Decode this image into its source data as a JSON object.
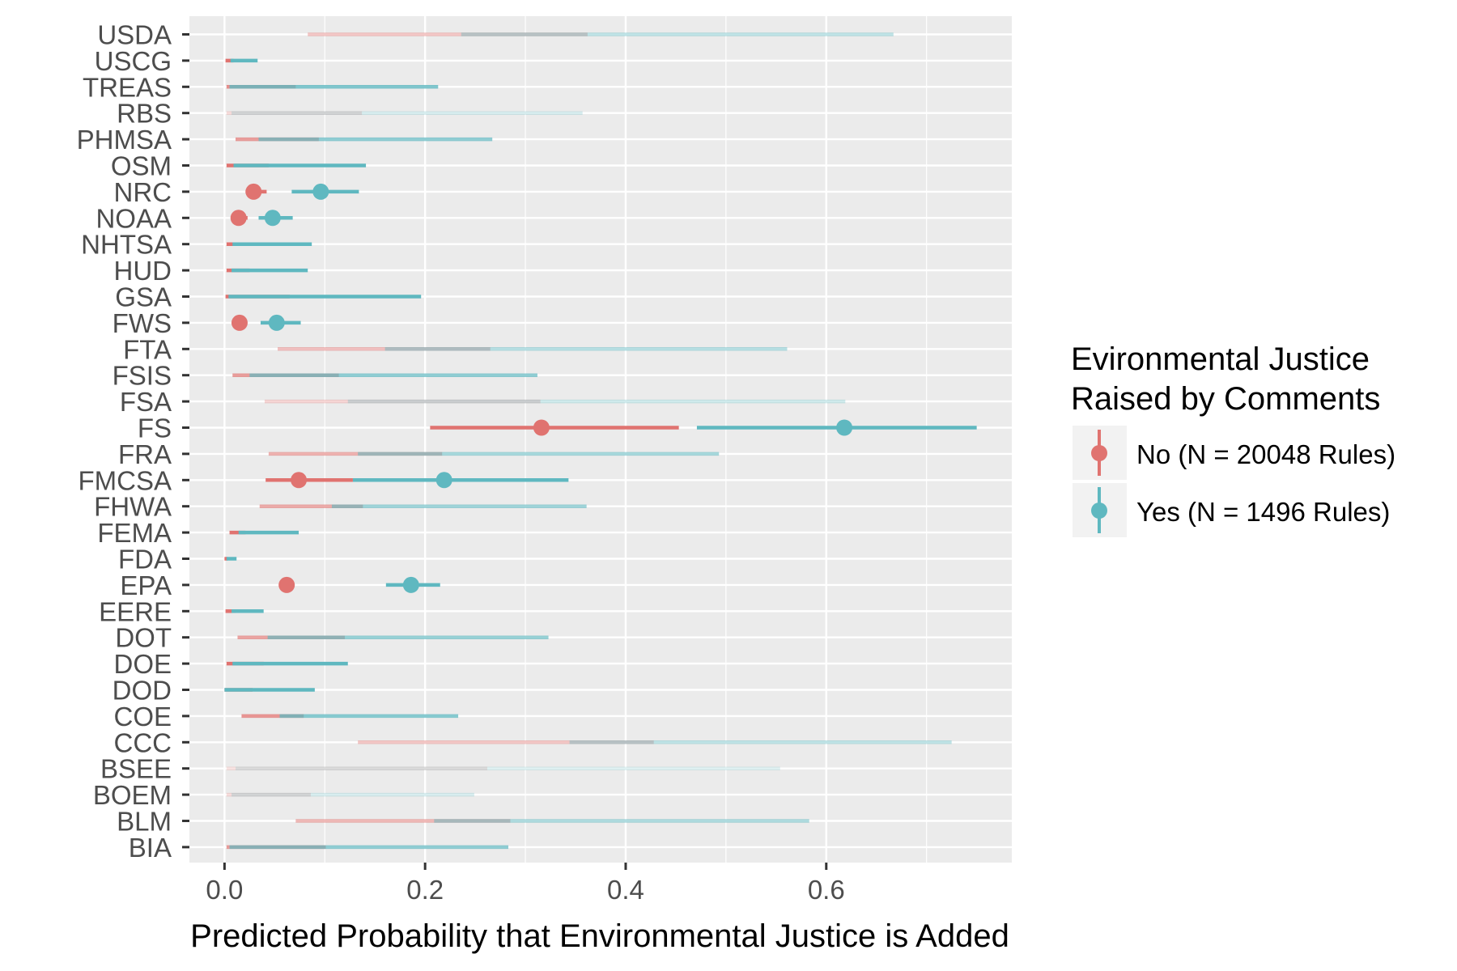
{
  "chart_data": {
    "type": "scatter",
    "subtype": "point-range",
    "title": "",
    "xlabel": "Predicted Probability that Environmental Justice is Added",
    "ylabel": "",
    "xlim": [
      -0.035,
      0.785
    ],
    "x_ticks": [
      0.0,
      0.2,
      0.4,
      0.6
    ],
    "x_tick_labels": [
      "0.0",
      "0.2",
      "0.4",
      "0.6"
    ],
    "grid": true,
    "categories": [
      "USDA",
      "USCG",
      "TREAS",
      "RBS",
      "PHMSA",
      "OSM",
      "NRC",
      "NOAA",
      "NHTSA",
      "HUD",
      "GSA",
      "FWS",
      "FTA",
      "FSIS",
      "FSA",
      "FS",
      "FRA",
      "FMCSA",
      "FHWA",
      "FEMA",
      "FDA",
      "EPA",
      "EERE",
      "DOT",
      "DOE",
      "DOD",
      "COE",
      "CCC",
      "BSEE",
      "BOEM",
      "BLM",
      "BIA"
    ],
    "series": [
      {
        "name": "No (N = 20048 Rules)",
        "color": "#e07370",
        "intervals": [
          {
            "cat": "USDA",
            "low": 0.083,
            "high": 0.362,
            "alpha": 0.4
          },
          {
            "cat": "USCG",
            "low": 0.001,
            "high": 0.009,
            "alpha": 1.0
          },
          {
            "cat": "TREAS",
            "low": 0.002,
            "high": 0.071,
            "alpha": 0.8
          },
          {
            "cat": "RBS",
            "low": 0.002,
            "high": 0.137,
            "alpha": 0.25
          },
          {
            "cat": "PHMSA",
            "low": 0.011,
            "high": 0.094,
            "alpha": 0.7
          },
          {
            "cat": "OSM",
            "low": 0.002,
            "high": 0.044,
            "alpha": 1.0
          },
          {
            "cat": "NRC",
            "low": 0.021,
            "high": 0.042,
            "est": 0.029,
            "alpha": 1.0
          },
          {
            "cat": "NOAA",
            "low": 0.01,
            "high": 0.023,
            "est": 0.014,
            "alpha": 1.0
          },
          {
            "cat": "NHTSA",
            "low": 0.002,
            "high": 0.027,
            "alpha": 1.0
          },
          {
            "cat": "HUD",
            "low": 0.002,
            "high": 0.025,
            "alpha": 1.0
          },
          {
            "cat": "GSA",
            "low": 0.001,
            "high": 0.065,
            "alpha": 1.0
          },
          {
            "cat": "FWS",
            "low": 0.012,
            "high": 0.022,
            "est": 0.015,
            "alpha": 1.0
          },
          {
            "cat": "FTA",
            "low": 0.053,
            "high": 0.265,
            "alpha": 0.45
          },
          {
            "cat": "FSIS",
            "low": 0.008,
            "high": 0.114,
            "alpha": 0.7
          },
          {
            "cat": "FSA",
            "low": 0.04,
            "high": 0.315,
            "alpha": 0.3
          },
          {
            "cat": "FS",
            "low": 0.205,
            "high": 0.453,
            "est": 0.316,
            "alpha": 1.0
          },
          {
            "cat": "FRA",
            "low": 0.044,
            "high": 0.217,
            "alpha": 0.55
          },
          {
            "cat": "FMCSA",
            "low": 0.041,
            "high": 0.128,
            "est": 0.074,
            "alpha": 1.0
          },
          {
            "cat": "FHWA",
            "low": 0.035,
            "high": 0.138,
            "alpha": 0.6
          },
          {
            "cat": "FEMA",
            "low": 0.005,
            "high": 0.021,
            "alpha": 1.0
          },
          {
            "cat": "FDA",
            "low": 0.0,
            "high": 0.003,
            "alpha": 1.0
          },
          {
            "cat": "EPA",
            "low": 0.058,
            "high": 0.067,
            "est": 0.062,
            "alpha": 1.0
          },
          {
            "cat": "EERE",
            "low": 0.001,
            "high": 0.011,
            "alpha": 1.0
          },
          {
            "cat": "DOT",
            "low": 0.013,
            "high": 0.12,
            "alpha": 0.65
          },
          {
            "cat": "DOE",
            "low": 0.002,
            "high": 0.039,
            "alpha": 1.0
          },
          {
            "cat": "DOD",
            "low": 0.0,
            "high": 0.028,
            "alpha": 1.0
          },
          {
            "cat": "COE",
            "low": 0.017,
            "high": 0.079,
            "alpha": 0.75
          },
          {
            "cat": "CCC",
            "low": 0.133,
            "high": 0.428,
            "alpha": 0.4
          },
          {
            "cat": "BSEE",
            "low": 0.002,
            "high": 0.262,
            "alpha": 0.2
          },
          {
            "cat": "BOEM",
            "low": 0.002,
            "high": 0.086,
            "alpha": 0.25
          },
          {
            "cat": "BLM",
            "low": 0.071,
            "high": 0.285,
            "alpha": 0.5
          },
          {
            "cat": "BIA",
            "low": 0.002,
            "high": 0.101,
            "alpha": 0.7
          }
        ]
      },
      {
        "name": "Yes (N = 1496 Rules)",
        "color": "#5fb8c0",
        "intervals": [
          {
            "cat": "USDA",
            "low": 0.236,
            "high": 0.667,
            "alpha": 0.4
          },
          {
            "cat": "USCG",
            "low": 0.006,
            "high": 0.033,
            "alpha": 1.0
          },
          {
            "cat": "TREAS",
            "low": 0.005,
            "high": 0.213,
            "alpha": 0.8
          },
          {
            "cat": "RBS",
            "low": 0.007,
            "high": 0.357,
            "alpha": 0.25
          },
          {
            "cat": "PHMSA",
            "low": 0.034,
            "high": 0.267,
            "alpha": 0.7
          },
          {
            "cat": "OSM",
            "low": 0.009,
            "high": 0.141,
            "alpha": 1.0
          },
          {
            "cat": "NRC",
            "low": 0.067,
            "high": 0.134,
            "est": 0.096,
            "alpha": 1.0
          },
          {
            "cat": "NOAA",
            "low": 0.034,
            "high": 0.068,
            "est": 0.048,
            "alpha": 1.0
          },
          {
            "cat": "NHTSA",
            "low": 0.008,
            "high": 0.087,
            "alpha": 1.0
          },
          {
            "cat": "HUD",
            "low": 0.007,
            "high": 0.083,
            "alpha": 1.0
          },
          {
            "cat": "GSA",
            "low": 0.004,
            "high": 0.196,
            "alpha": 1.0
          },
          {
            "cat": "FWS",
            "low": 0.036,
            "high": 0.076,
            "est": 0.052,
            "alpha": 1.0
          },
          {
            "cat": "FTA",
            "low": 0.16,
            "high": 0.561,
            "alpha": 0.45
          },
          {
            "cat": "FSIS",
            "low": 0.025,
            "high": 0.312,
            "alpha": 0.7
          },
          {
            "cat": "FSA",
            "low": 0.123,
            "high": 0.619,
            "alpha": 0.3
          },
          {
            "cat": "FS",
            "low": 0.471,
            "high": 0.75,
            "est": 0.618,
            "alpha": 1.0
          },
          {
            "cat": "FRA",
            "low": 0.133,
            "high": 0.493,
            "alpha": 0.55
          },
          {
            "cat": "FMCSA",
            "low": 0.128,
            "high": 0.343,
            "est": 0.219,
            "alpha": 1.0
          },
          {
            "cat": "FHWA",
            "low": 0.107,
            "high": 0.361,
            "alpha": 0.6
          },
          {
            "cat": "FEMA",
            "low": 0.014,
            "high": 0.074,
            "alpha": 1.0
          },
          {
            "cat": "FDA",
            "low": 0.002,
            "high": 0.012,
            "alpha": 1.0
          },
          {
            "cat": "EPA",
            "low": 0.161,
            "high": 0.215,
            "est": 0.186,
            "alpha": 1.0
          },
          {
            "cat": "EERE",
            "low": 0.007,
            "high": 0.039,
            "alpha": 1.0
          },
          {
            "cat": "DOT",
            "low": 0.043,
            "high": 0.323,
            "alpha": 0.65
          },
          {
            "cat": "DOE",
            "low": 0.008,
            "high": 0.123,
            "alpha": 1.0
          },
          {
            "cat": "DOD",
            "low": 0.0,
            "high": 0.09,
            "alpha": 1.0
          },
          {
            "cat": "COE",
            "low": 0.055,
            "high": 0.233,
            "alpha": 0.75
          },
          {
            "cat": "CCC",
            "low": 0.344,
            "high": 0.725,
            "alpha": 0.4
          },
          {
            "cat": "BSEE",
            "low": 0.011,
            "high": 0.554,
            "alpha": 0.2
          },
          {
            "cat": "BOEM",
            "low": 0.007,
            "high": 0.249,
            "alpha": 0.25
          },
          {
            "cat": "BLM",
            "low": 0.209,
            "high": 0.583,
            "alpha": 0.5
          },
          {
            "cat": "BIA",
            "low": 0.005,
            "high": 0.283,
            "alpha": 0.7
          }
        ]
      }
    ],
    "legend": {
      "title_lines": [
        "Evironmental Justice",
        "Raised by Comments"
      ],
      "placement": "right"
    },
    "panel_background": "#ebebeb",
    "grid_color": "#ffffff"
  }
}
